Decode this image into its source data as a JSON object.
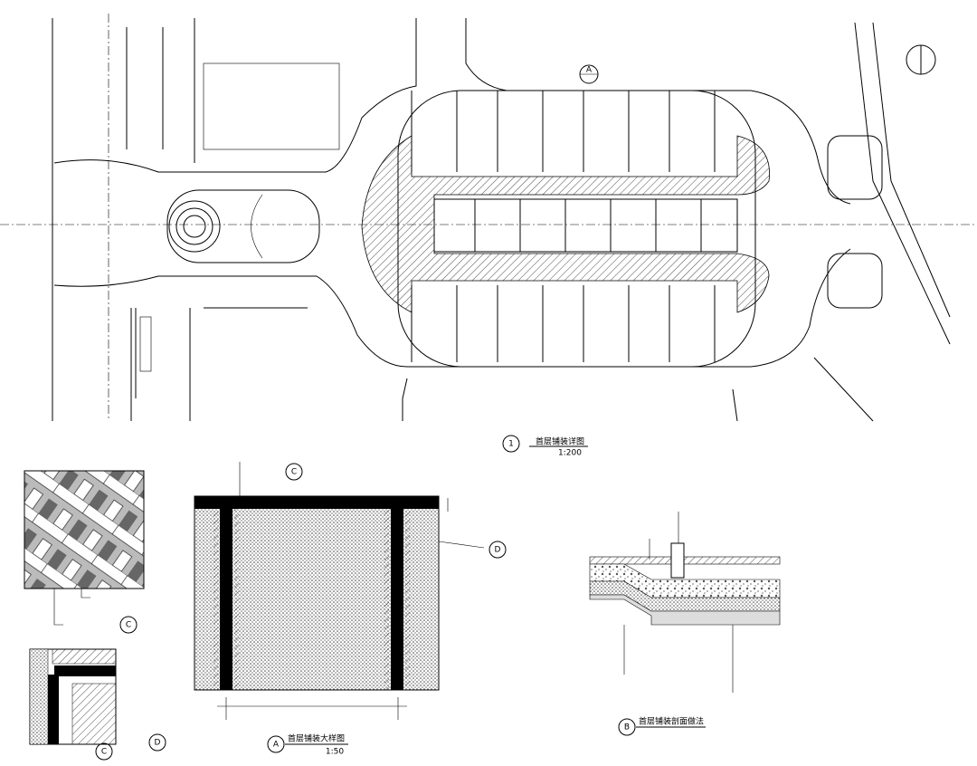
{
  "plan": {
    "title": "首层铺装详图",
    "scale": "1:200",
    "marker": "1",
    "callout": "A"
  },
  "detail_a": {
    "title": "首层铺装大样图",
    "scale": "1:50",
    "marker": "A",
    "callout_c": "C",
    "callout_d": "D"
  },
  "detail_b": {
    "title": "首层铺装剖面做法",
    "marker": "B"
  },
  "pattern_c": {
    "marker": "C"
  },
  "pattern_d": {
    "marker": "D",
    "callout": "C"
  }
}
